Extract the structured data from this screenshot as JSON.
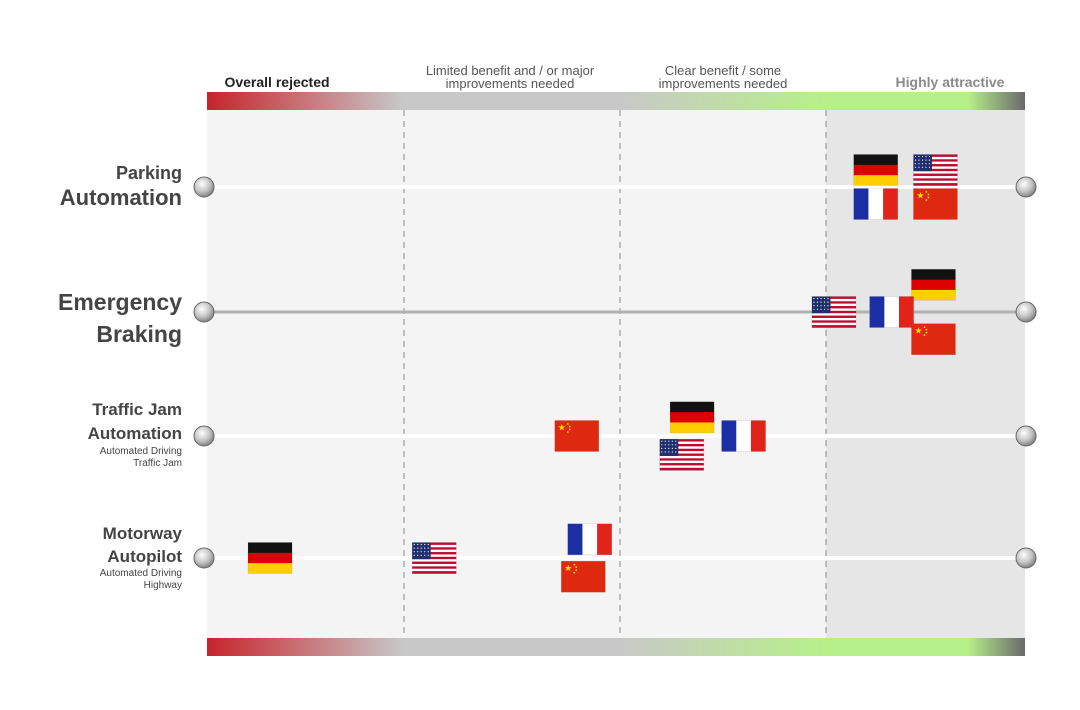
{
  "chart_data": {
    "type": "scatter",
    "title": "",
    "category_headers": [
      "Overall rejected",
      "Limited benefit and / or major improvements needed",
      "Clear benefit / some improvements needed",
      "Highly attractive"
    ],
    "xlim": [
      0,
      4
    ],
    "rows": [
      {
        "id": "parking",
        "label_lines": [
          "Parking",
          "Automation"
        ],
        "subtitle_lines": [],
        "countries": [
          {
            "country": "Germany",
            "x": 3.25,
            "dy": -0.5
          },
          {
            "country": "USA",
            "x": 3.55,
            "dy": -0.5
          },
          {
            "country": "France",
            "x": 3.25,
            "dy": 0.5
          },
          {
            "country": "China",
            "x": 3.55,
            "dy": 0.5
          }
        ]
      },
      {
        "id": "braking",
        "label_lines": [
          "Emergency",
          "Braking"
        ],
        "subtitle_lines": [],
        "countries": [
          {
            "country": "Germany",
            "x": 3.54,
            "dy": -0.8
          },
          {
            "country": "USA",
            "x": 3.04,
            "dy": 0.0
          },
          {
            "country": "France",
            "x": 3.33,
            "dy": 0.0
          },
          {
            "country": "China",
            "x": 3.54,
            "dy": 0.8
          }
        ]
      },
      {
        "id": "trafficjam",
        "label_lines": [
          "Traffic Jam",
          "Automation"
        ],
        "subtitle_lines": [
          "Automated Driving",
          "Traffic Jam"
        ],
        "countries": [
          {
            "country": "China",
            "x": 1.8,
            "dy": 0.0
          },
          {
            "country": "Germany",
            "x": 2.35,
            "dy": -0.55
          },
          {
            "country": "USA",
            "x": 2.3,
            "dy": 0.55
          },
          {
            "country": "France",
            "x": 2.6,
            "dy": 0.0
          }
        ]
      },
      {
        "id": "motorway",
        "label_lines": [
          "Motorway",
          "Autopilot"
        ],
        "subtitle_lines": [
          "Automated Driving",
          "Highway"
        ],
        "countries": [
          {
            "country": "Germany",
            "x": 0.32,
            "dy": 0.0
          },
          {
            "country": "USA",
            "x": 1.14,
            "dy": 0.0
          },
          {
            "country": "France",
            "x": 1.86,
            "dy": -0.55
          },
          {
            "country": "China",
            "x": 1.83,
            "dy": 0.55
          }
        ]
      }
    ],
    "grid": true,
    "legend": "none"
  },
  "colors": {
    "rejected": "#c8232b",
    "neutral": "#c8c8c8",
    "benefit": "#b6f08a",
    "attractive_end": "#6a6a6a",
    "plot_bg": "#f4f4f4",
    "attractive_bg": "#e6e6e6",
    "germany_black": "#111111",
    "germany_red": "#dd0000",
    "germany_gold": "#ffce00",
    "france_blue": "#1c2ea3",
    "france_red": "#e2231a",
    "china_red": "#de2910",
    "china_star": "#ffde00",
    "usa_red": "#bf0a30",
    "usa_blue": "#1f2f6d"
  }
}
